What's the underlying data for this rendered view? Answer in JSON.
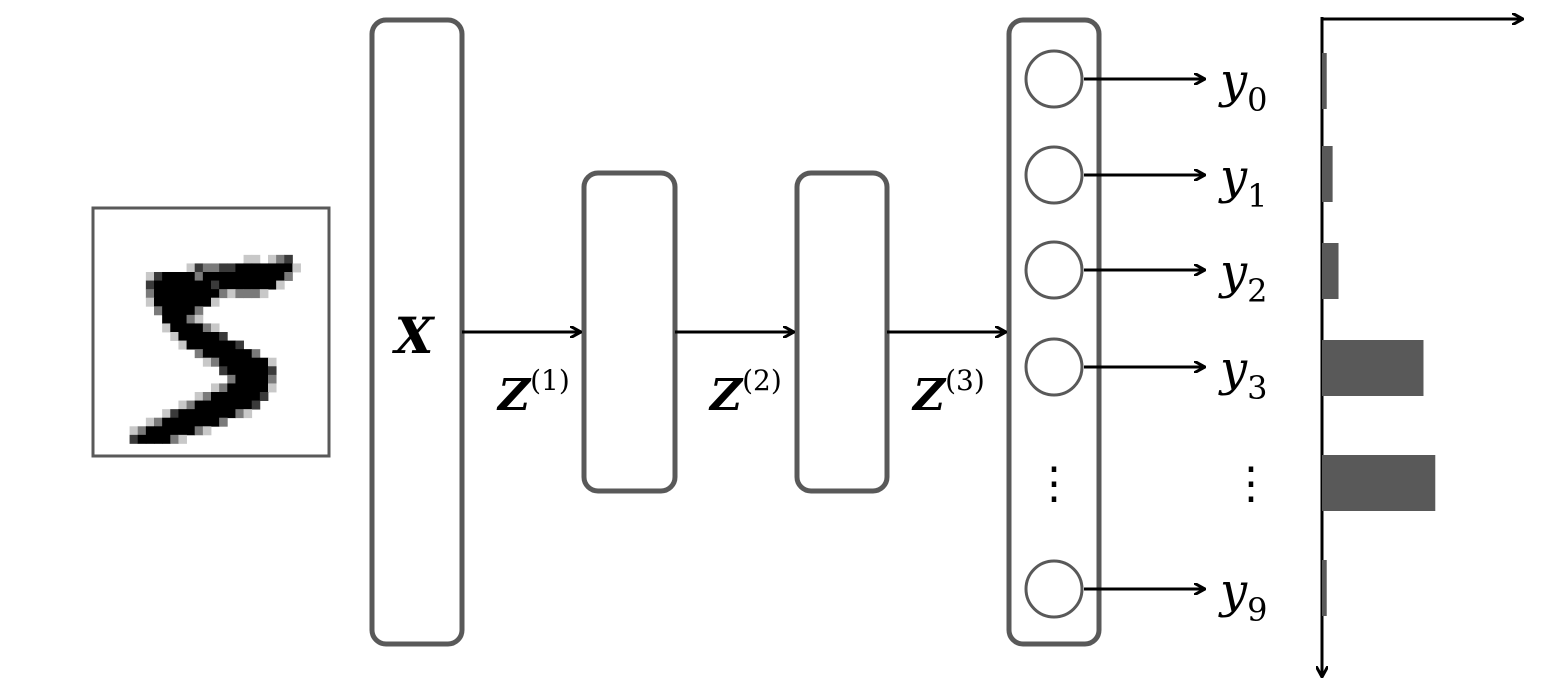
{
  "input_label": "X",
  "hidden_labels": [
    {
      "base": "Z",
      "sup": "(1)"
    },
    {
      "base": "Z",
      "sup": "(2)"
    },
    {
      "base": "Z",
      "sup": "(3)"
    }
  ],
  "outputs": [
    {
      "base": "y",
      "sub": "0",
      "prob": 0.04
    },
    {
      "base": "y",
      "sub": "1",
      "prob": 0.09
    },
    {
      "base": "y",
      "sub": "2",
      "prob": 0.14
    },
    {
      "base": "y",
      "sub": "3",
      "prob": 0.86
    },
    {
      "base": "y",
      "sub": "9",
      "prob": 0.04
    }
  ],
  "ellipsis_bar_prob": 0.96,
  "ellipsis": "⋮",
  "colors": {
    "stroke": "#595959",
    "bar": "#595959",
    "line": "#000000"
  },
  "digit_pixels": [
    "............................",
    "............................",
    "............................",
    "............................",
    "............................",
    "..................,,.,o*....",
    "...........,*oo**#######,...",
    "......,*####o##########o....",
    "......*#######*#######,.....",
    "......o########o,ooo,.......",
    "......,#######,.............",
    ".......o####o...............",
    "........###o,...............",
    "........,####o,.............",
    ".........,#####*............",
    "..........,######*..........",
    "............o######o........",
    ".............,o######,......",
    "...............*#####*......",
    "................o####o......",
    "..............,o#####,......",
    "............,o######*.......",
    "..........,o#######*........",
    "........,*#######o,.........",
    "......,o#######o............",
    "....,o######o,..............",
    "....*####o,.................",
    "............................"
  ]
}
